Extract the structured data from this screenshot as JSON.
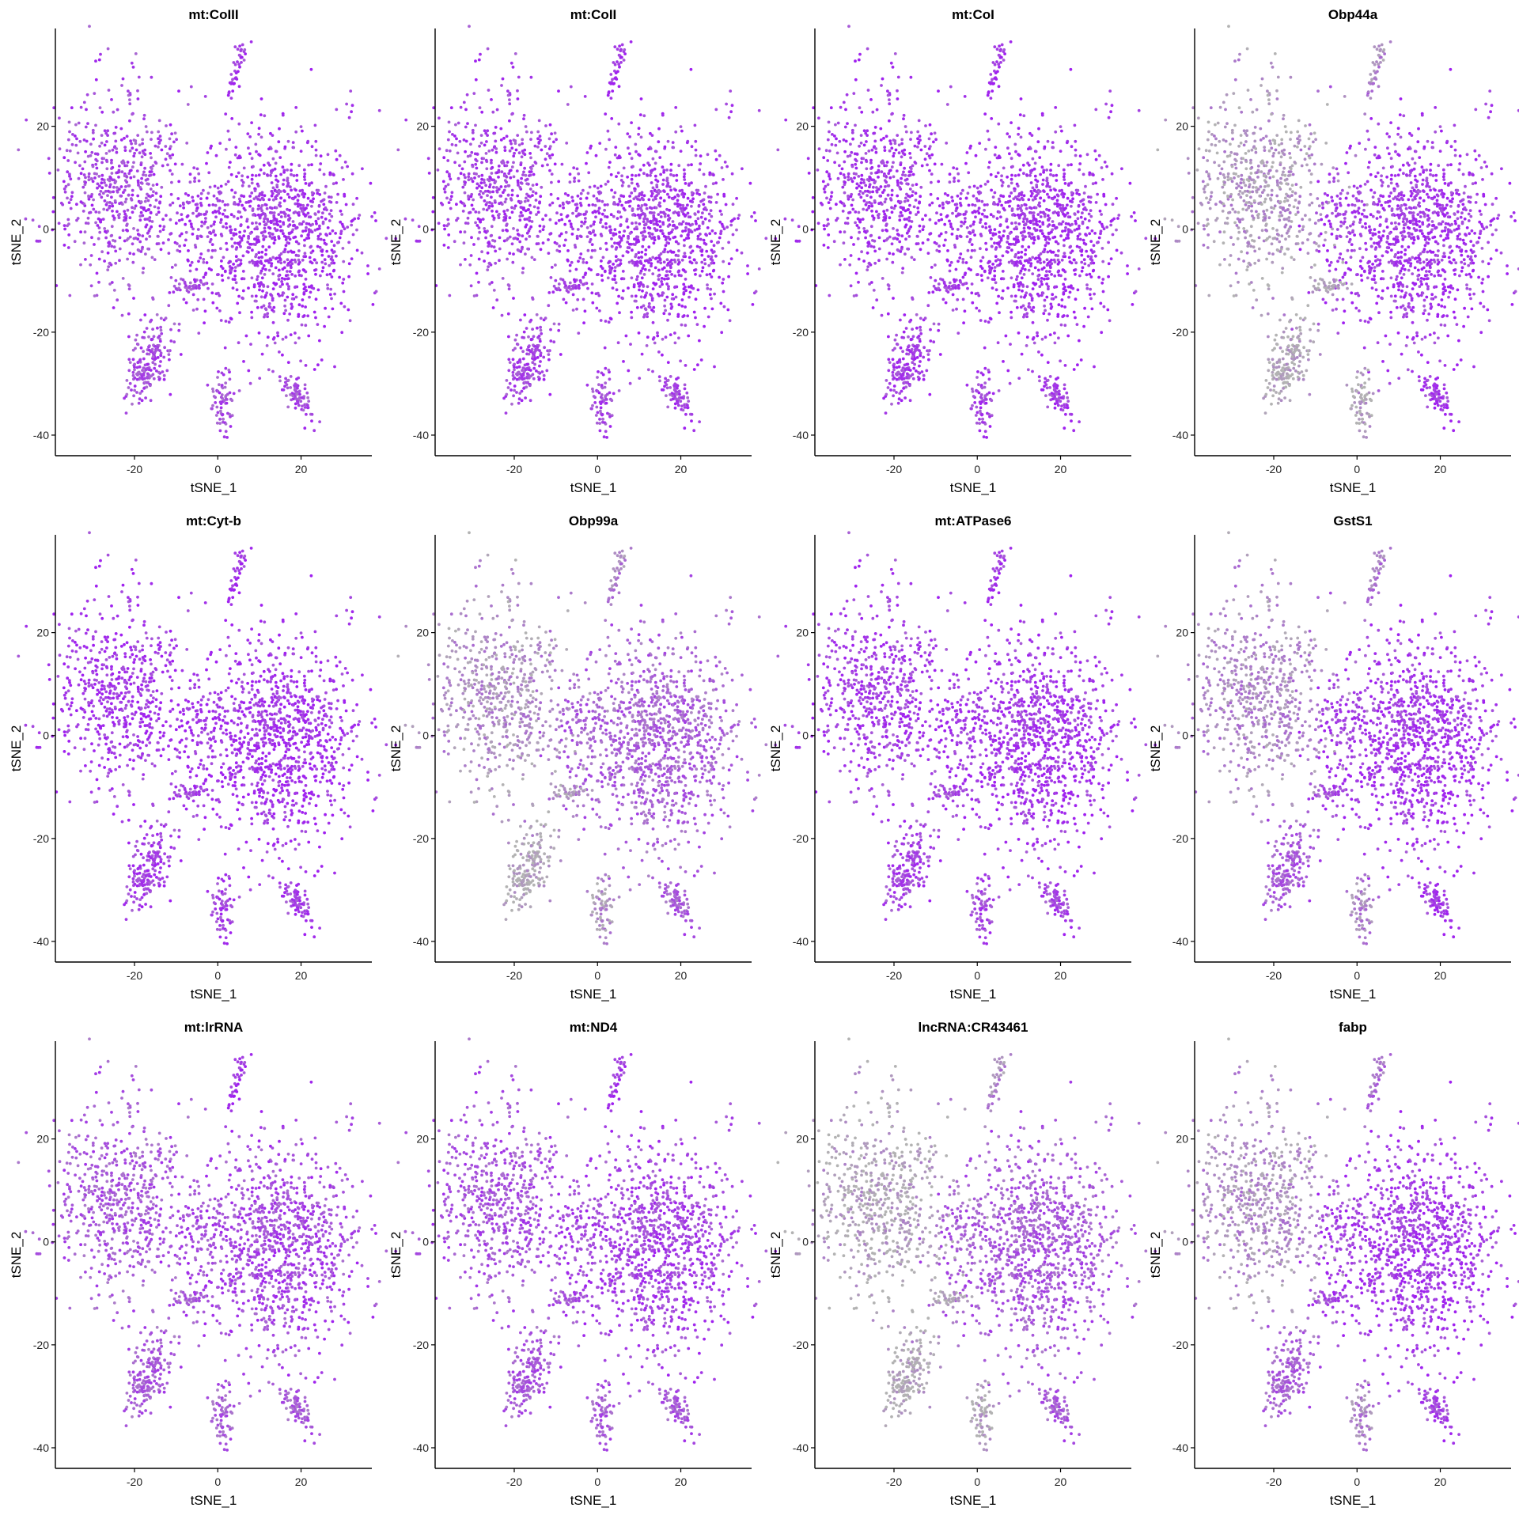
{
  "chart_data": {
    "type": "scatter",
    "layout": {
      "rows": 3,
      "cols": 4
    },
    "xlabel": "tSNE_1",
    "ylabel": "tSNE_2",
    "xlim": [
      -39,
      37
    ],
    "ylim": [
      -44,
      39
    ],
    "xticks": [
      -20,
      0,
      20
    ],
    "yticks": [
      -40,
      -20,
      0,
      20
    ],
    "colors": {
      "low": "#b3b3b3",
      "high": "#a020f0"
    },
    "clusters": [
      {
        "id": "upper-left",
        "cx": -23,
        "cy": 8,
        "sx": 8,
        "sy": 9,
        "n": 620
      },
      {
        "id": "center-right",
        "cx": 14,
        "cy": -1,
        "sx": 10,
        "sy": 10,
        "n": 1050
      },
      {
        "id": "bridge",
        "cx": -3,
        "cy": 3,
        "sx": 3,
        "sy": 4,
        "n": 60
      },
      {
        "id": "top-spike",
        "cx": 5,
        "cy": 32,
        "sx": 1.3,
        "sy": 3,
        "n": 40
      },
      {
        "id": "small-horizontal",
        "cx": -6,
        "cy": -11,
        "sx": 3,
        "sy": 0.8,
        "n": 40
      },
      {
        "id": "lower-left",
        "cx": -17,
        "cy": -26,
        "sx": 2.5,
        "sy": 4,
        "n": 190
      },
      {
        "id": "lower-middle",
        "cx": 1,
        "cy": -34,
        "sx": 1.2,
        "sy": 4,
        "n": 70
      },
      {
        "id": "lower-right",
        "cx": 19,
        "cy": -32,
        "sx": 2,
        "sy": 2.5,
        "n": 80
      }
    ],
    "panels": [
      {
        "title": "mt:CoIII",
        "levels": {
          "upper-left": 0.75,
          "center-right": 0.85,
          "bridge": 0.85,
          "top-spike": 0.85,
          "small-horizontal": 0.7,
          "lower-left": 0.7,
          "lower-middle": 0.7,
          "lower-right": 0.7
        }
      },
      {
        "title": "mt:CoII",
        "levels": {
          "upper-left": 0.8,
          "center-right": 0.85,
          "bridge": 0.85,
          "top-spike": 0.9,
          "small-horizontal": 0.75,
          "lower-left": 0.75,
          "lower-middle": 0.75,
          "lower-right": 0.75
        }
      },
      {
        "title": "mt:CoI",
        "levels": {
          "upper-left": 0.85,
          "center-right": 0.88,
          "bridge": 0.88,
          "top-spike": 0.9,
          "small-horizontal": 0.8,
          "lower-left": 0.8,
          "lower-middle": 0.8,
          "lower-right": 0.8
        }
      },
      {
        "title": "Obp44a",
        "levels": {
          "upper-left": 0.2,
          "center-right": 0.85,
          "bridge": 0.8,
          "top-spike": 0.3,
          "small-horizontal": 0.1,
          "lower-left": 0.05,
          "lower-middle": 0.1,
          "lower-right": 0.85
        }
      },
      {
        "title": "mt:Cyt-b",
        "levels": {
          "upper-left": 0.85,
          "center-right": 0.88,
          "bridge": 0.88,
          "top-spike": 0.9,
          "small-horizontal": 0.75,
          "lower-left": 0.78,
          "lower-middle": 0.8,
          "lower-right": 0.8
        }
      },
      {
        "title": "Obp99a",
        "levels": {
          "upper-left": 0.25,
          "center-right": 0.55,
          "bridge": 0.6,
          "top-spike": 0.35,
          "small-horizontal": 0.2,
          "lower-left": 0.05,
          "lower-middle": 0.25,
          "lower-right": 0.6
        }
      },
      {
        "title": "mt:ATPase6",
        "levels": {
          "upper-left": 0.8,
          "center-right": 0.85,
          "bridge": 0.85,
          "top-spike": 0.85,
          "small-horizontal": 0.7,
          "lower-left": 0.75,
          "lower-middle": 0.75,
          "lower-right": 0.75
        }
      },
      {
        "title": "GstS1",
        "levels": {
          "upper-left": 0.3,
          "center-right": 0.85,
          "bridge": 0.8,
          "top-spike": 0.4,
          "small-horizontal": 0.7,
          "lower-left": 0.6,
          "lower-middle": 0.35,
          "lower-right": 0.85
        }
      },
      {
        "title": "mt:lrRNA",
        "levels": {
          "upper-left": 0.62,
          "center-right": 0.72,
          "bridge": 0.72,
          "top-spike": 0.88,
          "small-horizontal": 0.6,
          "lower-left": 0.6,
          "lower-middle": 0.6,
          "lower-right": 0.6
        }
      },
      {
        "title": "mt:ND4",
        "levels": {
          "upper-left": 0.65,
          "center-right": 0.75,
          "bridge": 0.75,
          "top-spike": 0.85,
          "small-horizontal": 0.65,
          "lower-left": 0.62,
          "lower-middle": 0.62,
          "lower-right": 0.62
        }
      },
      {
        "title": "lncRNA:CR43461",
        "levels": {
          "upper-left": 0.1,
          "center-right": 0.6,
          "bridge": 0.6,
          "top-spike": 0.3,
          "small-horizontal": 0.1,
          "lower-left": 0.03,
          "lower-middle": 0.1,
          "lower-right": 0.6
        }
      },
      {
        "title": "fabp",
        "levels": {
          "upper-left": 0.25,
          "center-right": 0.82,
          "bridge": 0.8,
          "top-spike": 0.5,
          "small-horizontal": 0.75,
          "lower-left": 0.55,
          "lower-middle": 0.35,
          "lower-right": 0.75
        }
      }
    ]
  }
}
